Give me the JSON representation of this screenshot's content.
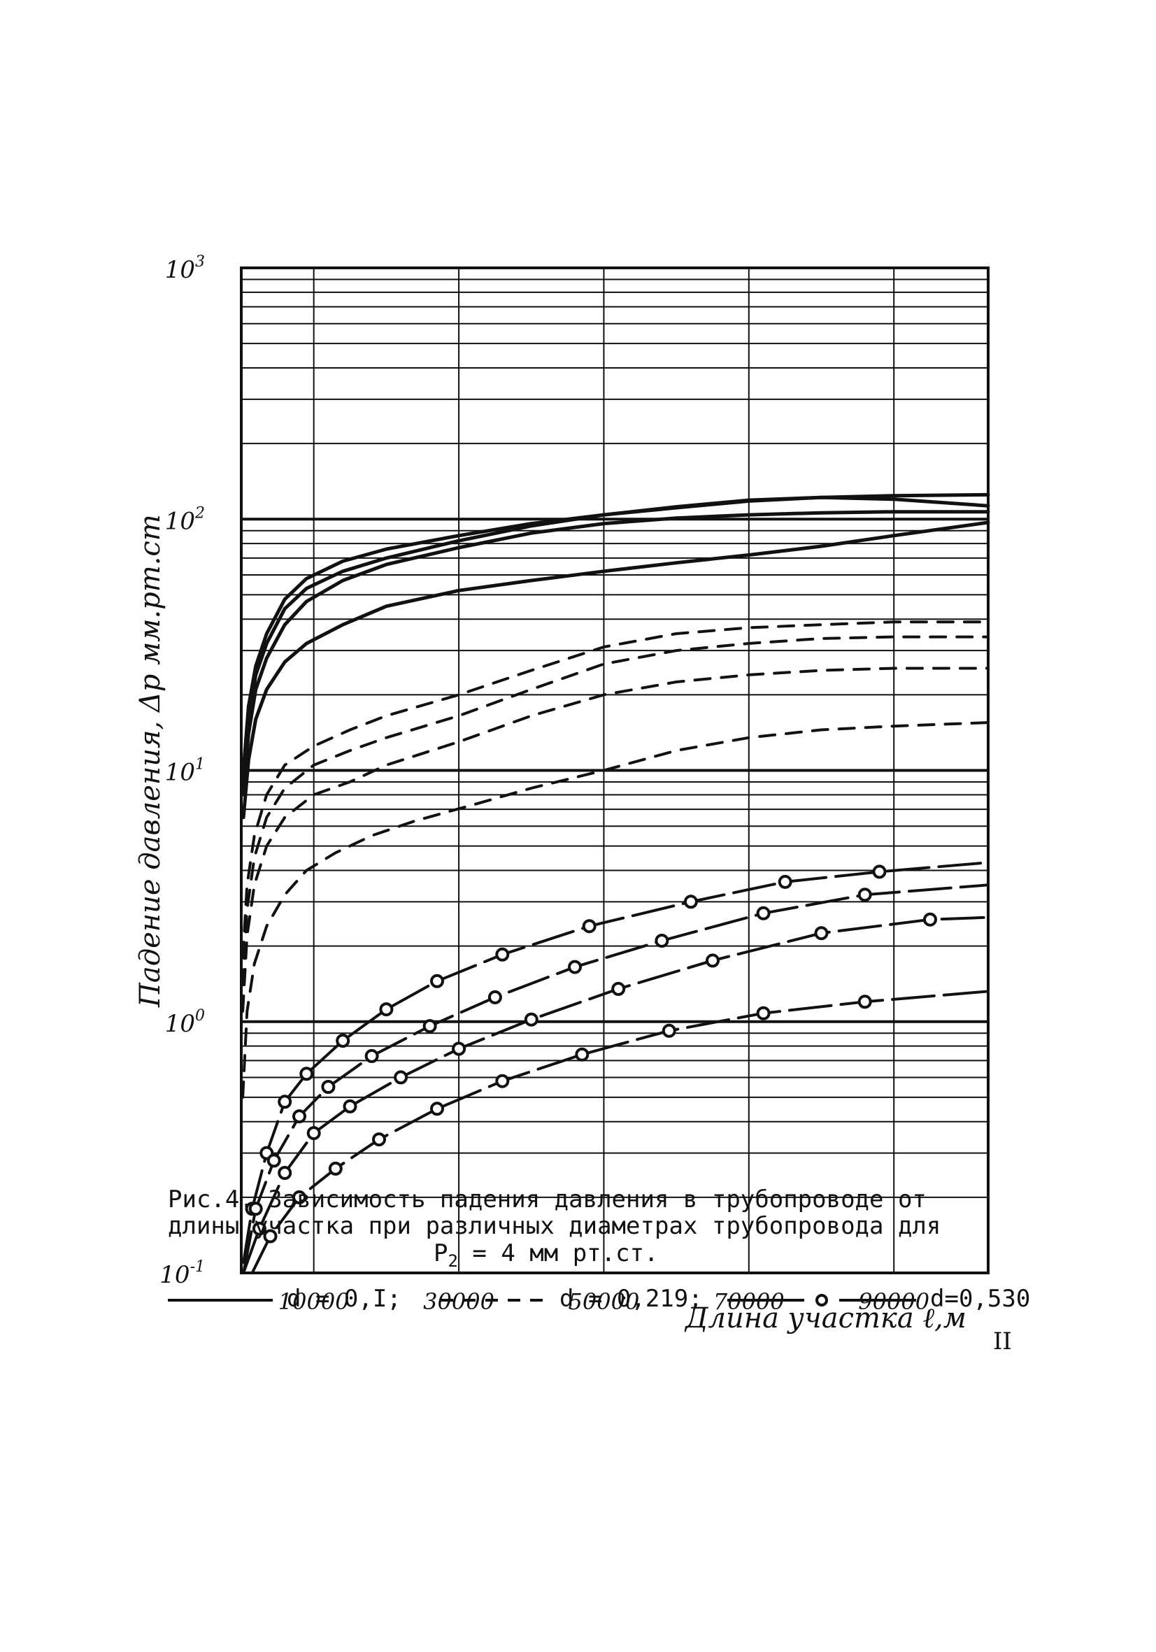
{
  "chart_data": {
    "type": "line",
    "yscale": "log",
    "xlim": [
      0,
      103000
    ],
    "ylim": [
      0.1,
      1000
    ],
    "grid": true,
    "xticks": [
      "10000",
      "30000",
      "50000",
      "70000",
      "90000"
    ],
    "yticks": [
      {
        "base": "10",
        "exp": "3"
      },
      {
        "base": "10",
        "exp": "2"
      },
      {
        "base": "10",
        "exp": "1"
      },
      {
        "base": "10",
        "exp": "0"
      },
      {
        "base": "10",
        "exp": "-1"
      }
    ],
    "xlabel": "Длина участка ℓ,м",
    "ylabel": "Падение давления, Δp мм.рт.ст",
    "series": [
      {
        "name": "d = 0,I",
        "style": "solid",
        "markers": false,
        "x": [
          300,
          1000,
          2000,
          3500,
          6000,
          9000,
          14000,
          20000,
          30000,
          40000,
          50000,
          60000,
          70000,
          80000,
          90000,
          103000
        ],
        "y": [
          10,
          18,
          26,
          35,
          48,
          58,
          68,
          76,
          86,
          96,
          104,
          111,
          118,
          122,
          124,
          125
        ]
      },
      {
        "name": "d = 0,I",
        "style": "solid",
        "markers": false,
        "x": [
          300,
          1000,
          2000,
          3500,
          6000,
          9000,
          14000,
          20000,
          30000,
          40000,
          50000,
          60000,
          70000,
          80000,
          90000,
          103000
        ],
        "y": [
          9,
          16,
          24,
          32,
          44,
          53,
          62,
          70,
          82,
          94,
          104,
          112,
          119,
          122,
          120,
          113
        ]
      },
      {
        "name": "d = 0,I",
        "style": "solid",
        "markers": false,
        "x": [
          300,
          1000,
          2000,
          3500,
          6000,
          9000,
          14000,
          20000,
          30000,
          40000,
          50000,
          60000,
          70000,
          80000,
          90000,
          103000
        ],
        "y": [
          8,
          14,
          21,
          28,
          38,
          47,
          57,
          66,
          77,
          88,
          96,
          101,
          104,
          106,
          107,
          107
        ]
      },
      {
        "name": "d = 0,I",
        "style": "solid",
        "markers": false,
        "x": [
          300,
          1000,
          2000,
          3500,
          6000,
          9000,
          14000,
          20000,
          30000,
          40000,
          50000,
          60000,
          70000,
          80000,
          90000,
          103000
        ],
        "y": [
          6.5,
          11,
          16,
          21,
          27,
          32,
          38,
          45,
          52,
          57,
          62,
          67,
          72,
          78,
          86,
          97
        ]
      },
      {
        "name": "d = 0,219",
        "style": "dashed",
        "markers": false,
        "x": [
          200,
          800,
          1800,
          3500,
          6000,
          10000,
          15000,
          20000,
          30000,
          40000,
          50000,
          60000,
          70000,
          80000,
          90000,
          103000
        ],
        "y": [
          1.8,
          3.5,
          5.5,
          8,
          10.5,
          12.5,
          14.5,
          16.5,
          20,
          25,
          31,
          35,
          37,
          38,
          39,
          39
        ]
      },
      {
        "name": "d = 0,219",
        "style": "dashed",
        "markers": false,
        "x": [
          200,
          800,
          1800,
          3500,
          6000,
          10000,
          15000,
          20000,
          30000,
          40000,
          50000,
          60000,
          70000,
          80000,
          90000,
          103000
        ],
        "y": [
          1.4,
          2.8,
          4.5,
          6.5,
          8.5,
          10.5,
          12,
          13.5,
          16.5,
          21,
          26.5,
          30,
          32,
          33.5,
          34,
          34
        ]
      },
      {
        "name": "d = 0,219",
        "style": "dashed",
        "markers": false,
        "x": [
          200,
          800,
          1800,
          3500,
          6000,
          10000,
          15000,
          20000,
          30000,
          40000,
          50000,
          60000,
          70000,
          80000,
          90000,
          103000
        ],
        "y": [
          1.1,
          2.2,
          3.5,
          5,
          6.5,
          8,
          9,
          10.5,
          13,
          16.5,
          20,
          22.5,
          24,
          25,
          25.5,
          25.5
        ]
      },
      {
        "name": "d = 0,219",
        "style": "dashed",
        "markers": false,
        "x": [
          200,
          800,
          1800,
          3500,
          6000,
          9000,
          13000,
          18000,
          24000,
          32000,
          40000,
          50000,
          60000,
          70000,
          80000,
          90000,
          103000
        ],
        "y": [
          0.5,
          1.1,
          1.7,
          2.4,
          3.2,
          4,
          4.7,
          5.5,
          6.3,
          7.3,
          8.5,
          10,
          12,
          13.5,
          14.5,
          15,
          15.5
        ]
      },
      {
        "name": "d=0,530",
        "style": "dash-dot",
        "markers": true,
        "x": [
          300,
          1500,
          3500,
          6000,
          9000,
          14000,
          20000,
          27000,
          36000,
          48000,
          62000,
          75000,
          88000,
          103000
        ],
        "y": [
          0.11,
          0.18,
          0.3,
          0.48,
          0.62,
          0.84,
          1.12,
          1.45,
          1.85,
          2.4,
          3.0,
          3.6,
          3.95,
          4.3
        ]
      },
      {
        "name": "d=0,530",
        "style": "dash-dot",
        "markers": true,
        "x": [
          300,
          2000,
          4500,
          8000,
          12000,
          18000,
          26000,
          35000,
          46000,
          58000,
          72000,
          86000,
          103000
        ],
        "y": [
          0.1,
          0.18,
          0.28,
          0.42,
          0.55,
          0.73,
          0.96,
          1.25,
          1.65,
          2.1,
          2.7,
          3.2,
          3.5
        ]
      },
      {
        "name": "d=0,530",
        "style": "dash-dot",
        "markers": true,
        "x": [
          300,
          2500,
          6000,
          10000,
          15000,
          22000,
          30000,
          40000,
          52000,
          65000,
          80000,
          95000,
          103000
        ],
        "y": [
          0.1,
          0.15,
          0.25,
          0.36,
          0.46,
          0.6,
          0.78,
          1.02,
          1.35,
          1.75,
          2.25,
          2.55,
          2.6
        ]
      },
      {
        "name": "d=0,530",
        "style": "dash-dot",
        "markers": true,
        "x": [
          1500,
          4000,
          8000,
          13000,
          19000,
          27000,
          36000,
          47000,
          59000,
          72000,
          86000,
          103000
        ],
        "y": [
          0.1,
          0.14,
          0.2,
          0.26,
          0.34,
          0.45,
          0.58,
          0.74,
          0.92,
          1.08,
          1.2,
          1.32
        ]
      }
    ]
  },
  "caption": {
    "title_lines": [
      "Рис.4. Зависимость падения давления в трубопроводе от",
      "длины участка при различных диаметрах трубопровода для"
    ],
    "formula_prefix": "P",
    "formula_sub": "2",
    "formula_suffix": " = 4 мм рт.ст."
  },
  "legend": [
    {
      "label": "d = 0,I;",
      "style": "solid"
    },
    {
      "label": "d = 0,219;",
      "style": "dashed"
    },
    {
      "label": "d=0,530",
      "style": "dash-dot"
    }
  ],
  "page_number": "II"
}
